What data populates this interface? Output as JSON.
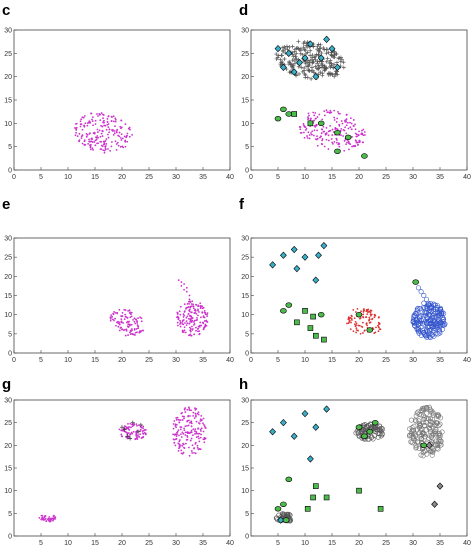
{
  "chart_data": [
    {
      "id": "c",
      "panel_label": "c",
      "type": "scatter",
      "xlim": [
        0,
        40
      ],
      "ylim": [
        0,
        30
      ],
      "xticks": [
        0,
        5,
        10,
        15,
        20,
        25,
        30,
        35,
        40
      ],
      "yticks": [
        0,
        5,
        10,
        15,
        20,
        25,
        30
      ],
      "clouds": [
        {
          "shape": "dot",
          "color": "#cc33cc",
          "cx": 16.5,
          "cy": 8.0,
          "rx": 5.5,
          "ry": 4.2,
          "count": 210,
          "tilt": -0.3
        }
      ],
      "markers": []
    },
    {
      "id": "d",
      "panel_label": "d",
      "type": "scatter",
      "xlim": [
        0,
        40
      ],
      "ylim": [
        0,
        30
      ],
      "xticks": [
        0,
        5,
        10,
        15,
        20,
        25,
        30,
        35,
        40
      ],
      "yticks": [
        0,
        5,
        10,
        15,
        20,
        25,
        30
      ],
      "clouds": [
        {
          "shape": "plus",
          "color": "#555555",
          "cx": 11.0,
          "cy": 23.5,
          "rx": 6.5,
          "ry": 4.0,
          "count": 240,
          "tilt": -0.2
        },
        {
          "shape": "dot",
          "color": "#cc33cc",
          "cx": 15.0,
          "cy": 8.5,
          "rx": 6.5,
          "ry": 4.2,
          "count": 210,
          "tilt": -0.3
        }
      ],
      "markers": [
        {
          "shape": "diamond",
          "color": "#39b0c8",
          "points": [
            [
              5,
              26
            ],
            [
              7,
              25
            ],
            [
              9,
              23
            ],
            [
              11,
              27
            ],
            [
              13,
              24
            ],
            [
              15,
              26
            ],
            [
              16,
              22
            ],
            [
              8,
              21
            ],
            [
              12,
              20
            ],
            [
              14,
              28
            ],
            [
              6,
              22
            ],
            [
              10,
              24
            ]
          ]
        },
        {
          "shape": "circle",
          "color": "#4cbb4c",
          "points": [
            [
              6,
              13
            ],
            [
              7,
              12
            ],
            [
              5,
              11
            ],
            [
              13,
              10
            ],
            [
              16,
              8
            ],
            [
              18,
              7
            ],
            [
              21,
              3
            ],
            [
              16,
              4
            ]
          ]
        },
        {
          "shape": "square",
          "color": "#4cbb4c",
          "points": [
            [
              8,
              12
            ],
            [
              11,
              10
            ]
          ]
        }
      ]
    },
    {
      "id": "e",
      "panel_label": "e",
      "type": "scatter",
      "xlim": [
        0,
        40
      ],
      "ylim": [
        0,
        30
      ],
      "xticks": [
        0,
        5,
        10,
        15,
        20,
        25,
        30,
        35,
        40
      ],
      "yticks": [
        0,
        5,
        10,
        15,
        20,
        25,
        30
      ],
      "clouds": [
        {
          "shape": "dot",
          "color": "#cc33cc",
          "cx": 21.0,
          "cy": 8.0,
          "rx": 3.0,
          "ry": 4.0,
          "count": 110,
          "tilt": 0.55
        },
        {
          "shape": "dot",
          "color": "#cc33cc",
          "cx": 33.0,
          "cy": 9.0,
          "rx": 3.0,
          "ry": 4.6,
          "count": 170,
          "tilt": 0.0
        }
      ],
      "markers": [
        {
          "shape": "dot",
          "color": "#cc33cc",
          "points": [
            [
              30.5,
              19
            ],
            [
              31,
              18.5
            ],
            [
              31.5,
              18
            ],
            [
              31,
              17.5
            ],
            [
              32,
              17
            ],
            [
              32,
              16
            ],
            [
              32.5,
              15
            ],
            [
              32.5,
              14
            ],
            [
              33,
              13.5
            ],
            [
              31.5,
              16.5
            ]
          ]
        }
      ]
    },
    {
      "id": "f",
      "panel_label": "f",
      "type": "scatter",
      "xlim": [
        0,
        40
      ],
      "ylim": [
        0,
        30
      ],
      "xticks": [
        0,
        5,
        10,
        15,
        20,
        25,
        30,
        35,
        40
      ],
      "yticks": [
        0,
        5,
        10,
        15,
        20,
        25,
        30
      ],
      "clouds": [
        {
          "shape": "dot",
          "color": "#dd3333",
          "cx": 21.0,
          "cy": 8.2,
          "rx": 3.2,
          "ry": 3.8,
          "count": 110,
          "tilt": 0.55
        },
        {
          "shape": "ring",
          "color": "#3355cc",
          "cx": 33.0,
          "cy": 8.5,
          "rx": 3.0,
          "ry": 4.5,
          "count": 170,
          "tilt": 0.0
        }
      ],
      "markers": [
        {
          "shape": "ring",
          "color": "#3355cc",
          "points": [
            [
              31,
              17
            ],
            [
              31.5,
              16
            ],
            [
              32,
              15
            ],
            [
              32.5,
              14
            ],
            [
              32,
              13
            ],
            [
              33,
              12.5
            ]
          ]
        },
        {
          "shape": "circle",
          "color": "#4cbb4c",
          "points": [
            [
              30.5,
              18.5
            ],
            [
              6,
              11
            ],
            [
              7,
              12.5
            ],
            [
              13,
              10
            ],
            [
              20,
              10
            ],
            [
              22,
              6
            ]
          ]
        },
        {
          "shape": "diamond",
          "color": "#39b0c8",
          "points": [
            [
              4,
              23
            ],
            [
              6,
              25.5
            ],
            [
              8.5,
              22
            ],
            [
              10,
              25
            ],
            [
              12.5,
              25.5
            ],
            [
              13.5,
              28
            ],
            [
              12,
              19
            ],
            [
              8,
              27
            ]
          ]
        },
        {
          "shape": "square",
          "color": "#4cbb4c",
          "points": [
            [
              8.5,
              8
            ],
            [
              11.5,
              9.5
            ],
            [
              11,
              6.5
            ],
            [
              12,
              4.5
            ],
            [
              13.5,
              3.5
            ],
            [
              10,
              11
            ]
          ]
        }
      ]
    },
    {
      "id": "g",
      "panel_label": "g",
      "type": "scatter",
      "xlim": [
        0,
        40
      ],
      "ylim": [
        0,
        30
      ],
      "xticks": [
        5,
        10,
        15,
        20,
        25,
        30,
        35,
        40
      ],
      "yticks": [
        0,
        5,
        10,
        15,
        20,
        25,
        30
      ],
      "clouds": [
        {
          "shape": "dot",
          "color": "#cc33cc",
          "cx": 6.2,
          "cy": 4.0,
          "rx": 1.6,
          "ry": 0.9,
          "count": 45,
          "tilt": 0.0
        },
        {
          "shape": "dot",
          "color": "#cc33cc",
          "cx": 22.0,
          "cy": 23.0,
          "rx": 2.6,
          "ry": 1.9,
          "count": 90,
          "tilt": 0.0
        },
        {
          "shape": "dot",
          "color": "#cc33cc",
          "cx": 32.5,
          "cy": 23.0,
          "rx": 3.2,
          "ry": 5.5,
          "count": 180,
          "tilt": 0.0
        }
      ],
      "markers": [
        {
          "shape": "plus",
          "color": "#333333",
          "points": [
            [
              20,
              24
            ],
            [
              21,
              22
            ],
            [
              22,
              25
            ],
            [
              23,
              23
            ],
            [
              20.5,
              23.5
            ],
            [
              23.5,
              24.5
            ],
            [
              21.5,
              21.5
            ]
          ]
        }
      ]
    },
    {
      "id": "h",
      "panel_label": "h",
      "type": "scatter",
      "xlim": [
        0,
        40
      ],
      "ylim": [
        0,
        30
      ],
      "xticks": [
        5,
        10,
        15,
        20,
        25,
        30,
        35,
        40
      ],
      "yticks": [
        0,
        5,
        10,
        15,
        20,
        25,
        30
      ],
      "clouds": [
        {
          "shape": "ring",
          "color": "#555555",
          "cx": 6.2,
          "cy": 4.0,
          "rx": 1.6,
          "ry": 0.9,
          "count": 40,
          "tilt": 0.0
        },
        {
          "shape": "ring",
          "color": "#555555",
          "cx": 22.0,
          "cy": 23.0,
          "rx": 2.6,
          "ry": 1.8,
          "count": 80,
          "tilt": 0.0
        },
        {
          "shape": "ring",
          "color": "#777777",
          "cx": 32.5,
          "cy": 23.0,
          "rx": 3.2,
          "ry": 5.5,
          "count": 170,
          "tilt": 0.0
        }
      ],
      "markers": [
        {
          "shape": "diamond",
          "color": "#39b0c8",
          "points": [
            [
              4,
              23
            ],
            [
              6,
              25
            ],
            [
              8,
              22
            ],
            [
              10,
              27
            ],
            [
              12,
              24
            ],
            [
              14,
              28
            ],
            [
              11,
              17
            ],
            [
              5.5,
              3.5
            ]
          ]
        },
        {
          "shape": "circle",
          "color": "#4cbb4c",
          "points": [
            [
              5,
              6
            ],
            [
              6,
              7
            ],
            [
              7,
              12.5
            ],
            [
              20,
              24
            ],
            [
              22,
              23
            ],
            [
              21,
              22
            ],
            [
              23,
              25
            ],
            [
              6.5,
              3.5
            ],
            [
              32,
              20
            ]
          ]
        },
        {
          "shape": "square",
          "color": "#4cbb4c",
          "points": [
            [
              10.5,
              6
            ],
            [
              11.5,
              8.5
            ],
            [
              14,
              8.5
            ],
            [
              20,
              10
            ],
            [
              24,
              6
            ],
            [
              12,
              11
            ]
          ]
        },
        {
          "shape": "greydiamond",
          "color": "#888888",
          "points": [
            [
              35,
              11
            ],
            [
              34,
              7
            ],
            [
              33,
              20
            ]
          ]
        }
      ]
    }
  ]
}
